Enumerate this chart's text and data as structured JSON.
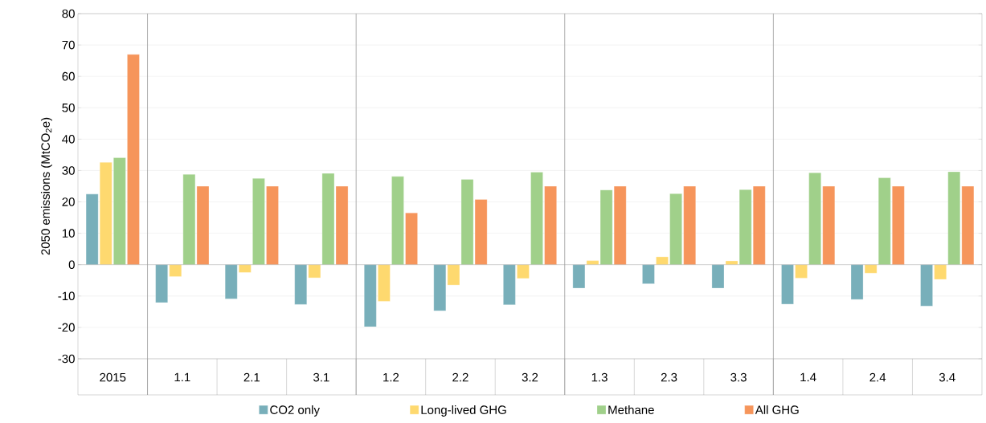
{
  "chart_data": {
    "type": "bar",
    "ylabel": "2050 emissions (MtCO$_{2}$e)",
    "categories": [
      "2015",
      "1.1",
      "2.1",
      "3.1",
      "1.2",
      "2.2",
      "3.2",
      "1.3",
      "2.3",
      "3.3",
      "1.4",
      "2.4",
      "3.4"
    ],
    "series": [
      {
        "name": "CO2 only",
        "color": "#78afba",
        "values": [
          22.5,
          -12.1,
          -10.9,
          -12.7,
          -19.8,
          -14.7,
          -12.8,
          -7.5,
          -6.1,
          -7.5,
          -12.6,
          -11.1,
          -13.2
        ]
      },
      {
        "name": "Long-lived GHG",
        "color": "#fed96f",
        "values": [
          32.6,
          -3.8,
          -2.5,
          -4.2,
          -11.7,
          -6.5,
          -4.4,
          1.3,
          2.5,
          1.2,
          -4.3,
          -2.7,
          -4.7
        ]
      },
      {
        "name": "Methane",
        "color": "#a0d08a",
        "values": [
          34.1,
          28.8,
          27.5,
          29.1,
          28.1,
          27.2,
          29.5,
          23.8,
          22.6,
          23.9,
          29.3,
          27.7,
          29.6
        ]
      },
      {
        "name": "All GHG",
        "color": "#f6955b",
        "values": [
          67.0,
          25.0,
          25.0,
          25.0,
          16.5,
          20.8,
          25.0,
          25.0,
          25.0,
          25.0,
          25.0,
          25.0,
          25.0
        ]
      }
    ],
    "ylim": [
      -30,
      80
    ],
    "yticks": [
      -30,
      -20,
      -10,
      0,
      10,
      20,
      30,
      40,
      50,
      60,
      70,
      80
    ],
    "grid": "y",
    "legend": "bottom"
  }
}
